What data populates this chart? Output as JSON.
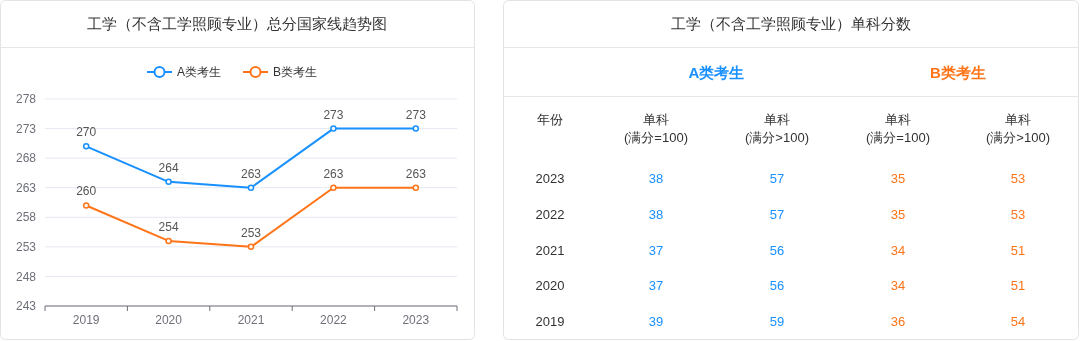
{
  "chart_data": [
    {
      "type": "line",
      "title": "工学（不含工学照顾专业）总分国家线趋势图",
      "categories": [
        "2019",
        "2020",
        "2021",
        "2022",
        "2023"
      ],
      "series": [
        {
          "name": "A类考生",
          "color": "#1890ff",
          "values": [
            270,
            264,
            263,
            273,
            273
          ]
        },
        {
          "name": "B类考生",
          "color": "#ff7418",
          "values": [
            260,
            254,
            253,
            263,
            263
          ]
        }
      ],
      "ylim": [
        243,
        278
      ],
      "yticks": [
        243,
        248,
        253,
        258,
        263,
        268,
        273,
        278
      ],
      "grid": "y",
      "legend": "top",
      "marker": "circle",
      "data_labels": true
    },
    {
      "type": "heatmap",
      "title": "工学（不含工学照顾专业）单科分数",
      "ylabel": "年份",
      "annotations": [
        "A类考生",
        "B类考生"
      ],
      "categories": [
        "单科(满分=100)",
        "单科(满分>100)",
        "单科(满分=100)",
        "单科(满分>100)"
      ],
      "colors": [
        "#1890ff",
        "#1890ff",
        "#ff7418",
        "#ff7418"
      ],
      "y_categories": [
        "2023",
        "2022",
        "2021",
        "2020",
        "2019"
      ],
      "cells": [
        [
          38,
          57,
          35,
          53
        ],
        [
          38,
          57,
          35,
          53
        ],
        [
          37,
          56,
          34,
          51
        ],
        [
          37,
          56,
          34,
          51
        ],
        [
          39,
          59,
          36,
          54
        ]
      ],
      "data_labels": true
    }
  ]
}
